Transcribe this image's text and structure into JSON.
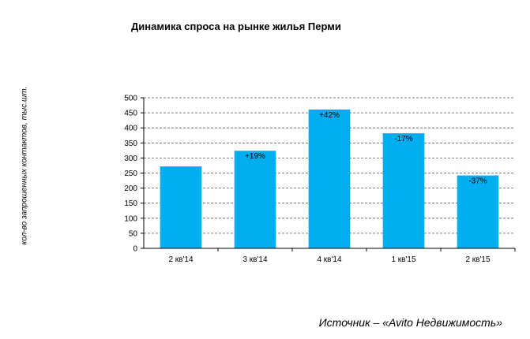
{
  "chart_data": {
    "type": "bar",
    "title": "Динамика спроса на рынке жилья Перми",
    "xlabel": "",
    "ylabel": "кол-во запрошенных контактов, тыс.шт.",
    "categories": [
      "2 кв'14",
      "3 кв'14",
      "4 кв'14",
      "1 кв'15",
      "2 кв'15"
    ],
    "values": [
      272,
      324,
      461,
      382,
      242
    ],
    "data_labels": [
      "",
      "+19%",
      "+42%",
      "-17%",
      "-37%"
    ],
    "ylim": [
      0,
      500
    ],
    "yticks": [
      0,
      50,
      100,
      150,
      200,
      250,
      300,
      350,
      400,
      450,
      500
    ],
    "grid": true,
    "bar_color": "#00AEEF"
  },
  "source": "Источник – «Avito Недвижимость»"
}
